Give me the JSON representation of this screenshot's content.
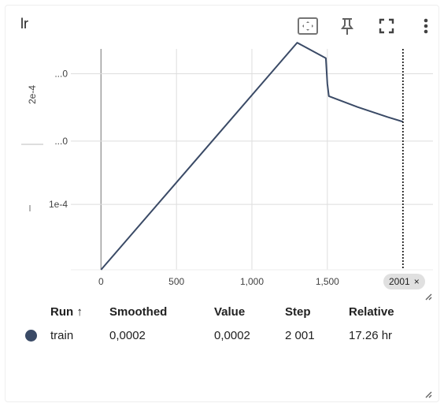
{
  "card": {
    "title": "lr"
  },
  "toolbar": {
    "fit_icon": "fit-domain-icon",
    "pin_icon": "pin-icon",
    "fullscreen_icon": "fullscreen-icon",
    "more_icon": "more-vert-icon"
  },
  "chart_data": {
    "type": "line",
    "title": "lr",
    "xlabel": "",
    "ylabel": "",
    "xlim": [
      -200,
      2200
    ],
    "ylim": [
      0,
      0.000285
    ],
    "x_ticks": [
      "0",
      "500",
      "1,000",
      "1,500"
    ],
    "x_tick_values": [
      0,
      500,
      1000,
      1500
    ],
    "y_ticks": [
      "...0",
      "...0",
      "1e-4"
    ],
    "y_tick_values": [
      0.000253,
      0.000166,
      8.43e-05
    ],
    "y_axis_side_label": "2e-4",
    "series": [
      {
        "name": "train",
        "color": "#3a4a66",
        "x": [
          0,
          1300,
          1490,
          1500,
          1510,
          1700,
          1900,
          2001
        ],
        "y": [
          0.0,
          0.000293,
          0.000273,
          0.00024,
          0.000224,
          0.00021,
          0.000197,
          0.000191
        ]
      }
    ],
    "step_marker": {
      "x": 2001,
      "label": "2001",
      "close_glyph": "×"
    },
    "grid": true
  },
  "legend": {
    "headers": {
      "run": "Run",
      "sort": "↑",
      "smoothed": "Smoothed",
      "value": "Value",
      "step": "Step",
      "relative": "Relative"
    },
    "rows": [
      {
        "run": "train",
        "color": "#3a4a66",
        "smoothed": "0,0002",
        "value": "0,0002",
        "step": "2 001",
        "relative": "17.26 hr"
      }
    ]
  }
}
